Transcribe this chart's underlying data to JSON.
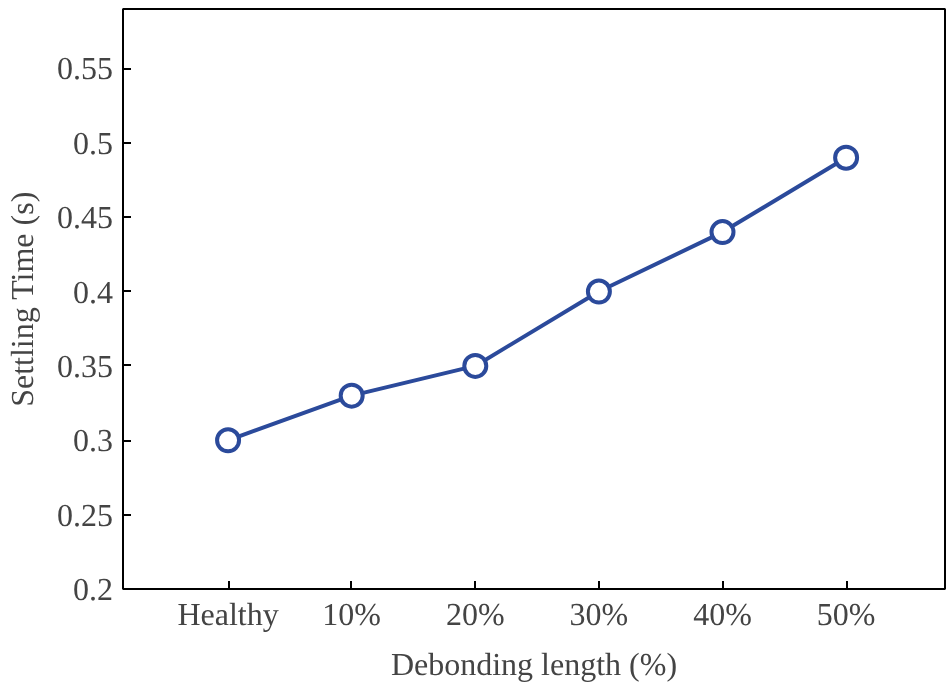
{
  "chart_data": {
    "type": "line",
    "xlabel": "Debonding length (%)",
    "ylabel": "Settling Time (s)",
    "categories": [
      "Healthy",
      "10%",
      "20%",
      "30%",
      "40%",
      "50%"
    ],
    "series": [
      {
        "color": "#2b4a9b",
        "values": [
          0.3,
          0.33,
          0.35,
          0.4,
          0.44,
          0.49
        ]
      }
    ],
    "ylim": [
      0.2,
      0.59
    ],
    "yticks": [
      0.2,
      0.25,
      0.3,
      0.35,
      0.4,
      0.45,
      0.5,
      0.55
    ],
    "marker": "circle",
    "line_style": "solid",
    "grid": false
  }
}
